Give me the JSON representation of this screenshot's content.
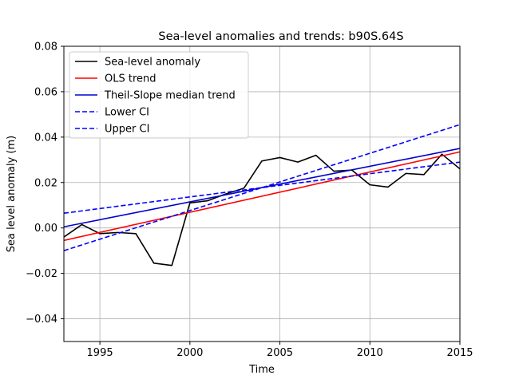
{
  "chart_data": {
    "type": "line",
    "title": "Sea-level anomalies and trends: b90S.64S",
    "xlabel": "Time",
    "ylabel": "Sea level anomaly (m)",
    "xlim": [
      1993,
      2015
    ],
    "ylim": [
      -0.05,
      0.08
    ],
    "xticks": [
      1995,
      2000,
      2005,
      2010,
      2015
    ],
    "yticks": [
      -0.04,
      -0.02,
      0.0,
      0.02,
      0.04,
      0.06,
      0.08
    ],
    "xtick_labels": [
      "1995",
      "2000",
      "2005",
      "2010",
      "2015"
    ],
    "ytick_labels": [
      "−0.04",
      "−0.02",
      "0.00",
      "0.02",
      "0.04",
      "0.06",
      "0.08"
    ],
    "grid": true,
    "legend_position": "top-left",
    "series": [
      {
        "name": "Sea-level anomaly",
        "color": "#000000",
        "style": "solid",
        "x": [
          1993,
          1994,
          1995,
          1996,
          1997,
          1998,
          1999,
          2000,
          2001,
          2002,
          2003,
          2004,
          2005,
          2006,
          2007,
          2008,
          2009,
          2010,
          2011,
          2012,
          2013,
          2014,
          2015
        ],
        "y": [
          -0.004,
          0.0015,
          -0.0025,
          -0.002,
          -0.0025,
          -0.0155,
          -0.0165,
          0.011,
          0.012,
          0.015,
          0.0175,
          0.0295,
          0.031,
          0.029,
          0.032,
          0.025,
          0.0255,
          0.019,
          0.018,
          0.024,
          0.0235,
          0.0325,
          0.026
        ]
      },
      {
        "name": "OLS trend",
        "color": "#ff0000",
        "style": "solid",
        "x": [
          1993,
          2015
        ],
        "y": [
          -0.0055,
          0.0335
        ]
      },
      {
        "name": "Theil-Slope median trend",
        "color": "#0000cc",
        "style": "solid",
        "x": [
          1993,
          2015
        ],
        "y": [
          0.0005,
          0.035
        ]
      },
      {
        "name": "Lower CI",
        "color": "#0000ff",
        "style": "dashed",
        "x": [
          1993,
          2015
        ],
        "y": [
          0.0065,
          0.029
        ]
      },
      {
        "name": "Upper CI",
        "color": "#0000ff",
        "style": "dashed",
        "x": [
          1993,
          2015
        ],
        "y": [
          -0.01,
          0.0455
        ]
      }
    ]
  }
}
